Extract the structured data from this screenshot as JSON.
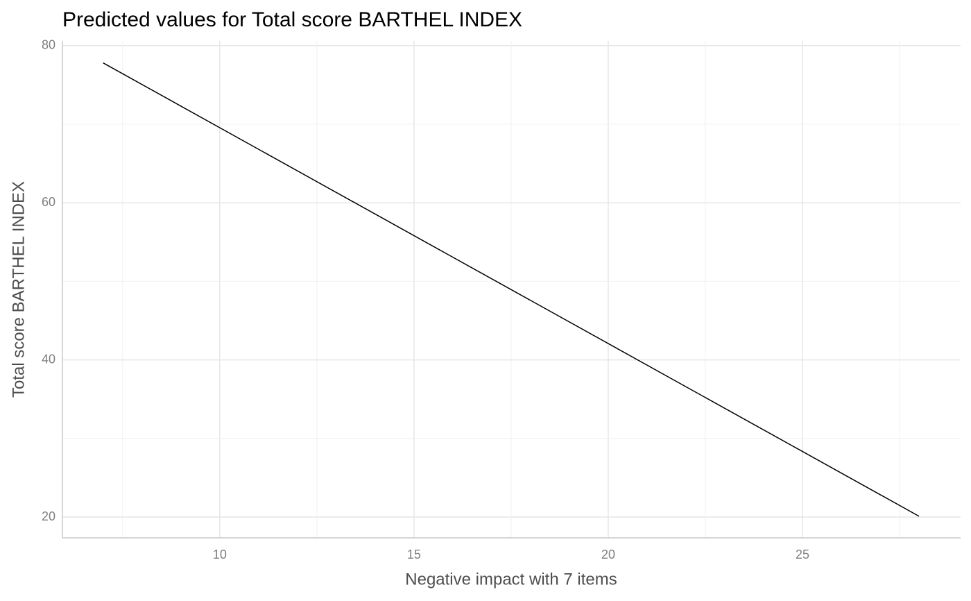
{
  "chart_data": {
    "type": "line",
    "title": "Predicted values for Total score BARTHEL INDEX",
    "x_label": "Negative impact with 7 items",
    "y_label": "Total score BARTHEL INDEX",
    "x": [
      7,
      28
    ],
    "values": [
      77.8,
      20.1
    ],
    "color": "#000000",
    "xlim": [
      5.95,
      29.07
    ],
    "ylim": [
      17.35,
      80.6
    ],
    "xticks": [
      10,
      15,
      20,
      25
    ],
    "yticks": [
      20,
      40,
      60,
      80
    ],
    "minor_xticks": [
      7.5,
      12.5,
      17.5,
      22.5,
      27.5
    ],
    "minor_yticks": [
      30,
      50,
      70
    ],
    "grid": true
  }
}
